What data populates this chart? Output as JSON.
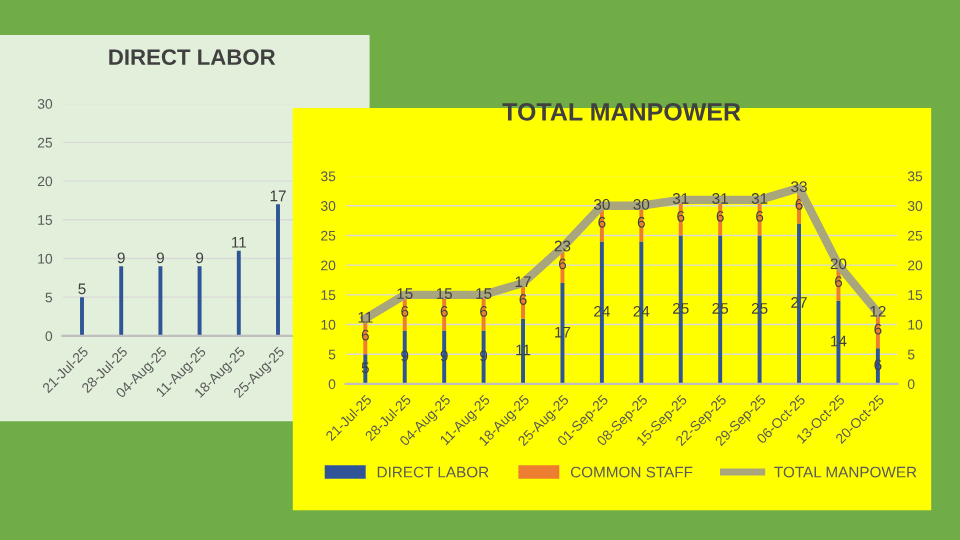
{
  "chart_data": [
    {
      "type": "bar",
      "title": "DIRECT LABOR",
      "categories": [
        "21-Jul-25",
        "28-Jul-25",
        "04-Aug-25",
        "11-Aug-25",
        "18-Aug-25",
        "25-Aug-25"
      ],
      "series": [
        {
          "color": "#2f5597",
          "values": [
            5,
            9,
            9,
            9,
            11,
            17
          ]
        }
      ],
      "ylim": [
        0,
        30
      ],
      "yticks": [
        0,
        5,
        10,
        15,
        20,
        25,
        30
      ],
      "grid": "y",
      "data_labels": true
    },
    {
      "type": "bar",
      "title": "TOTAL MANPOWER",
      "stacked": true,
      "categories": [
        "21-Jul-25",
        "28-Jul-25",
        "04-Aug-25",
        "11-Aug-25",
        "18-Aug-25",
        "25-Aug-25",
        "01-Sep-25",
        "08-Sep-25",
        "15-Sep-25",
        "22-Sep-25",
        "29-Sep-25",
        "06-Oct-25",
        "13-Oct-25",
        "20-Oct-25"
      ],
      "series": [
        {
          "name": "DIRECT LABOR",
          "color": "#2f5597",
          "values": [
            5,
            9,
            9,
            9,
            11,
            17,
            24,
            24,
            25,
            25,
            25,
            27,
            14,
            6
          ]
        },
        {
          "name": "COMMON STAFF",
          "color": "#ed7d31",
          "values": [
            6,
            6,
            6,
            6,
            6,
            6,
            6,
            6,
            6,
            6,
            6,
            6,
            6,
            6
          ]
        },
        {
          "name": "TOTAL MANPOWER",
          "type": "line",
          "axis": "y2",
          "color": "#a9a57c",
          "values": [
            11,
            15,
            15,
            15,
            17,
            23,
            30,
            30,
            31,
            31,
            31,
            33,
            20,
            12
          ]
        }
      ],
      "ylim": [
        0,
        35
      ],
      "yticks": [
        0,
        5,
        10,
        15,
        20,
        25,
        30,
        35
      ],
      "y2lim": [
        0,
        35
      ],
      "y2ticks": [
        0,
        5,
        10,
        15,
        20,
        25,
        30,
        35
      ],
      "grid": "y",
      "legend": "bottom",
      "data_labels": true,
      "marker": "none",
      "line_style": "solid"
    }
  ]
}
